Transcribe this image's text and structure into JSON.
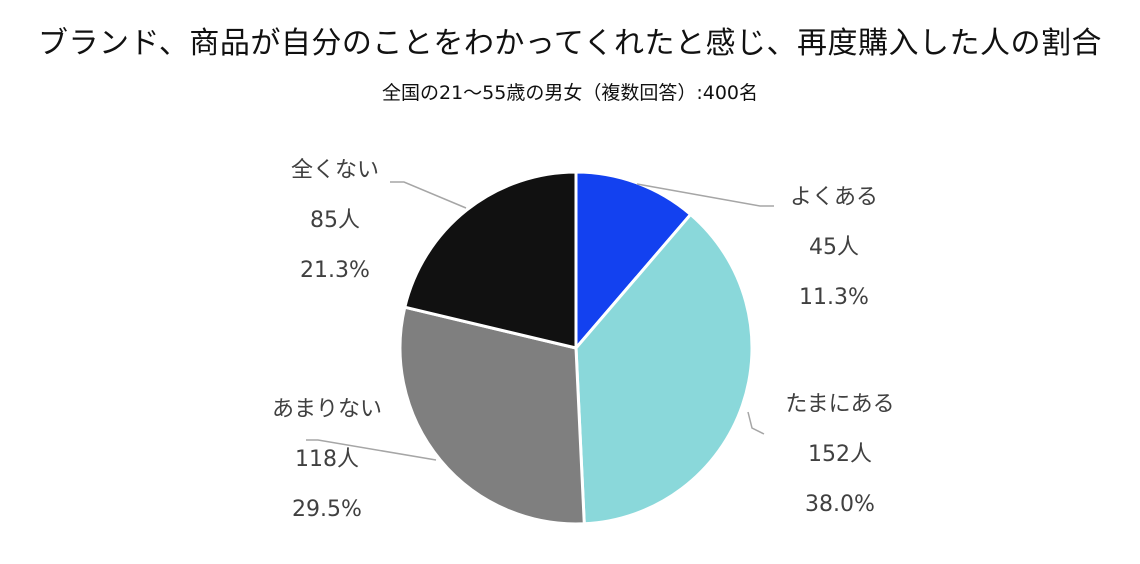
{
  "chart_data": {
    "type": "pie",
    "title": "ブランド、商品が自分のことをわかってくれたと感じ、再度購入した人の割合",
    "subtitle": "全国の21〜55歳の男女（複数回答）:400名",
    "slices": [
      {
        "label": "よくある",
        "count": "45人",
        "percent": "11.3%",
        "value": 11.3,
        "color": "#1341f0"
      },
      {
        "label": "たまにある",
        "count": "152人",
        "percent": "38.0%",
        "value": 38.0,
        "color": "#8ad8da"
      },
      {
        "label": "あまりない",
        "count": "118人",
        "percent": "29.5%",
        "value": 29.5,
        "color": "#7f7f7f"
      },
      {
        "label": "全くない",
        "count": "85人",
        "percent": "21.3%",
        "value": 21.3,
        "color": "#111111"
      }
    ]
  }
}
